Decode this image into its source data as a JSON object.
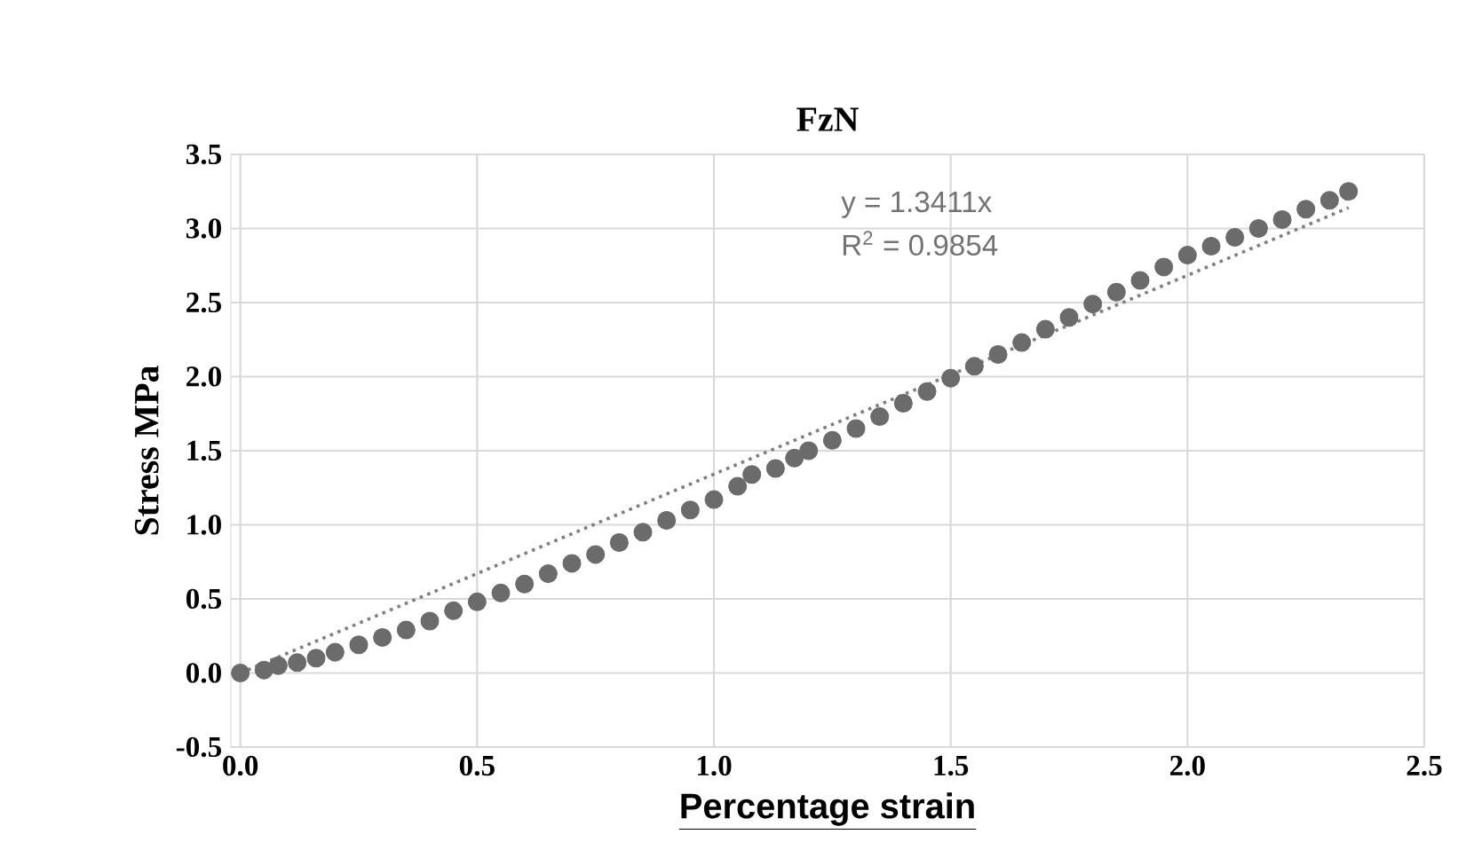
{
  "chart_data": {
    "type": "scatter",
    "title": "FzN",
    "xlabel": "Percentage strain",
    "ylabel": "Stress MPa",
    "xlim": [
      -0.02,
      2.5
    ],
    "ylim": [
      -0.5,
      3.5
    ],
    "xticks": [
      {
        "value": 0,
        "label": "0.0"
      },
      0.5,
      {
        "value": 1,
        "label": "1.0"
      },
      1.5,
      {
        "value": 2,
        "label": "2.0"
      },
      2.5
    ],
    "yticks": [
      -0.5,
      {
        "value": 0,
        "label": "0.0"
      },
      0.5,
      {
        "value": 1,
        "label": "1.0"
      },
      1.5,
      {
        "value": 2,
        "label": "2.0"
      },
      2.5,
      {
        "value": 3,
        "label": "3.0"
      },
      3.5
    ],
    "grid": true,
    "marker": "circle",
    "series": [
      {
        "color": "#6b6b6b",
        "x": [
          0,
          0.05,
          0.08,
          0.12,
          0.16,
          0.2,
          0.25,
          0.3,
          0.35,
          0.4,
          0.45,
          0.5,
          0.55,
          0.6,
          0.65,
          0.7,
          0.75,
          0.8,
          0.85,
          0.9,
          0.95,
          1.0,
          1.05,
          1.08,
          1.13,
          1.17,
          1.2,
          1.25,
          1.3,
          1.35,
          1.4,
          1.45,
          1.5,
          1.55,
          1.6,
          1.65,
          1.7,
          1.75,
          1.8,
          1.85,
          1.9,
          1.95,
          2.0,
          2.05,
          2.1,
          2.15,
          2.2,
          2.25,
          2.3,
          2.34
        ],
        "values": [
          0,
          0.02,
          0.05,
          0.07,
          0.1,
          0.14,
          0.19,
          0.24,
          0.29,
          0.35,
          0.42,
          0.48,
          0.54,
          0.6,
          0.67,
          0.74,
          0.8,
          0.88,
          0.95,
          1.03,
          1.1,
          1.17,
          1.26,
          1.34,
          1.38,
          1.45,
          1.5,
          1.57,
          1.65,
          1.73,
          1.82,
          1.9,
          1.99,
          2.07,
          2.15,
          2.23,
          2.32,
          2.4,
          2.49,
          2.57,
          2.65,
          2.74,
          2.82,
          2.88,
          2.94,
          3.0,
          3.06,
          3.13,
          3.19,
          3.25
        ]
      },
      {
        "type": "line",
        "marker": "none",
        "color": "#7f7f7f",
        "line_style": "dotted",
        "x": [
          0,
          2.34
        ],
        "values": [
          0,
          3.14
        ]
      }
    ],
    "annotations": [
      "y = 1.3411x",
      "R$^{2}$ = 0.9854"
    ]
  }
}
